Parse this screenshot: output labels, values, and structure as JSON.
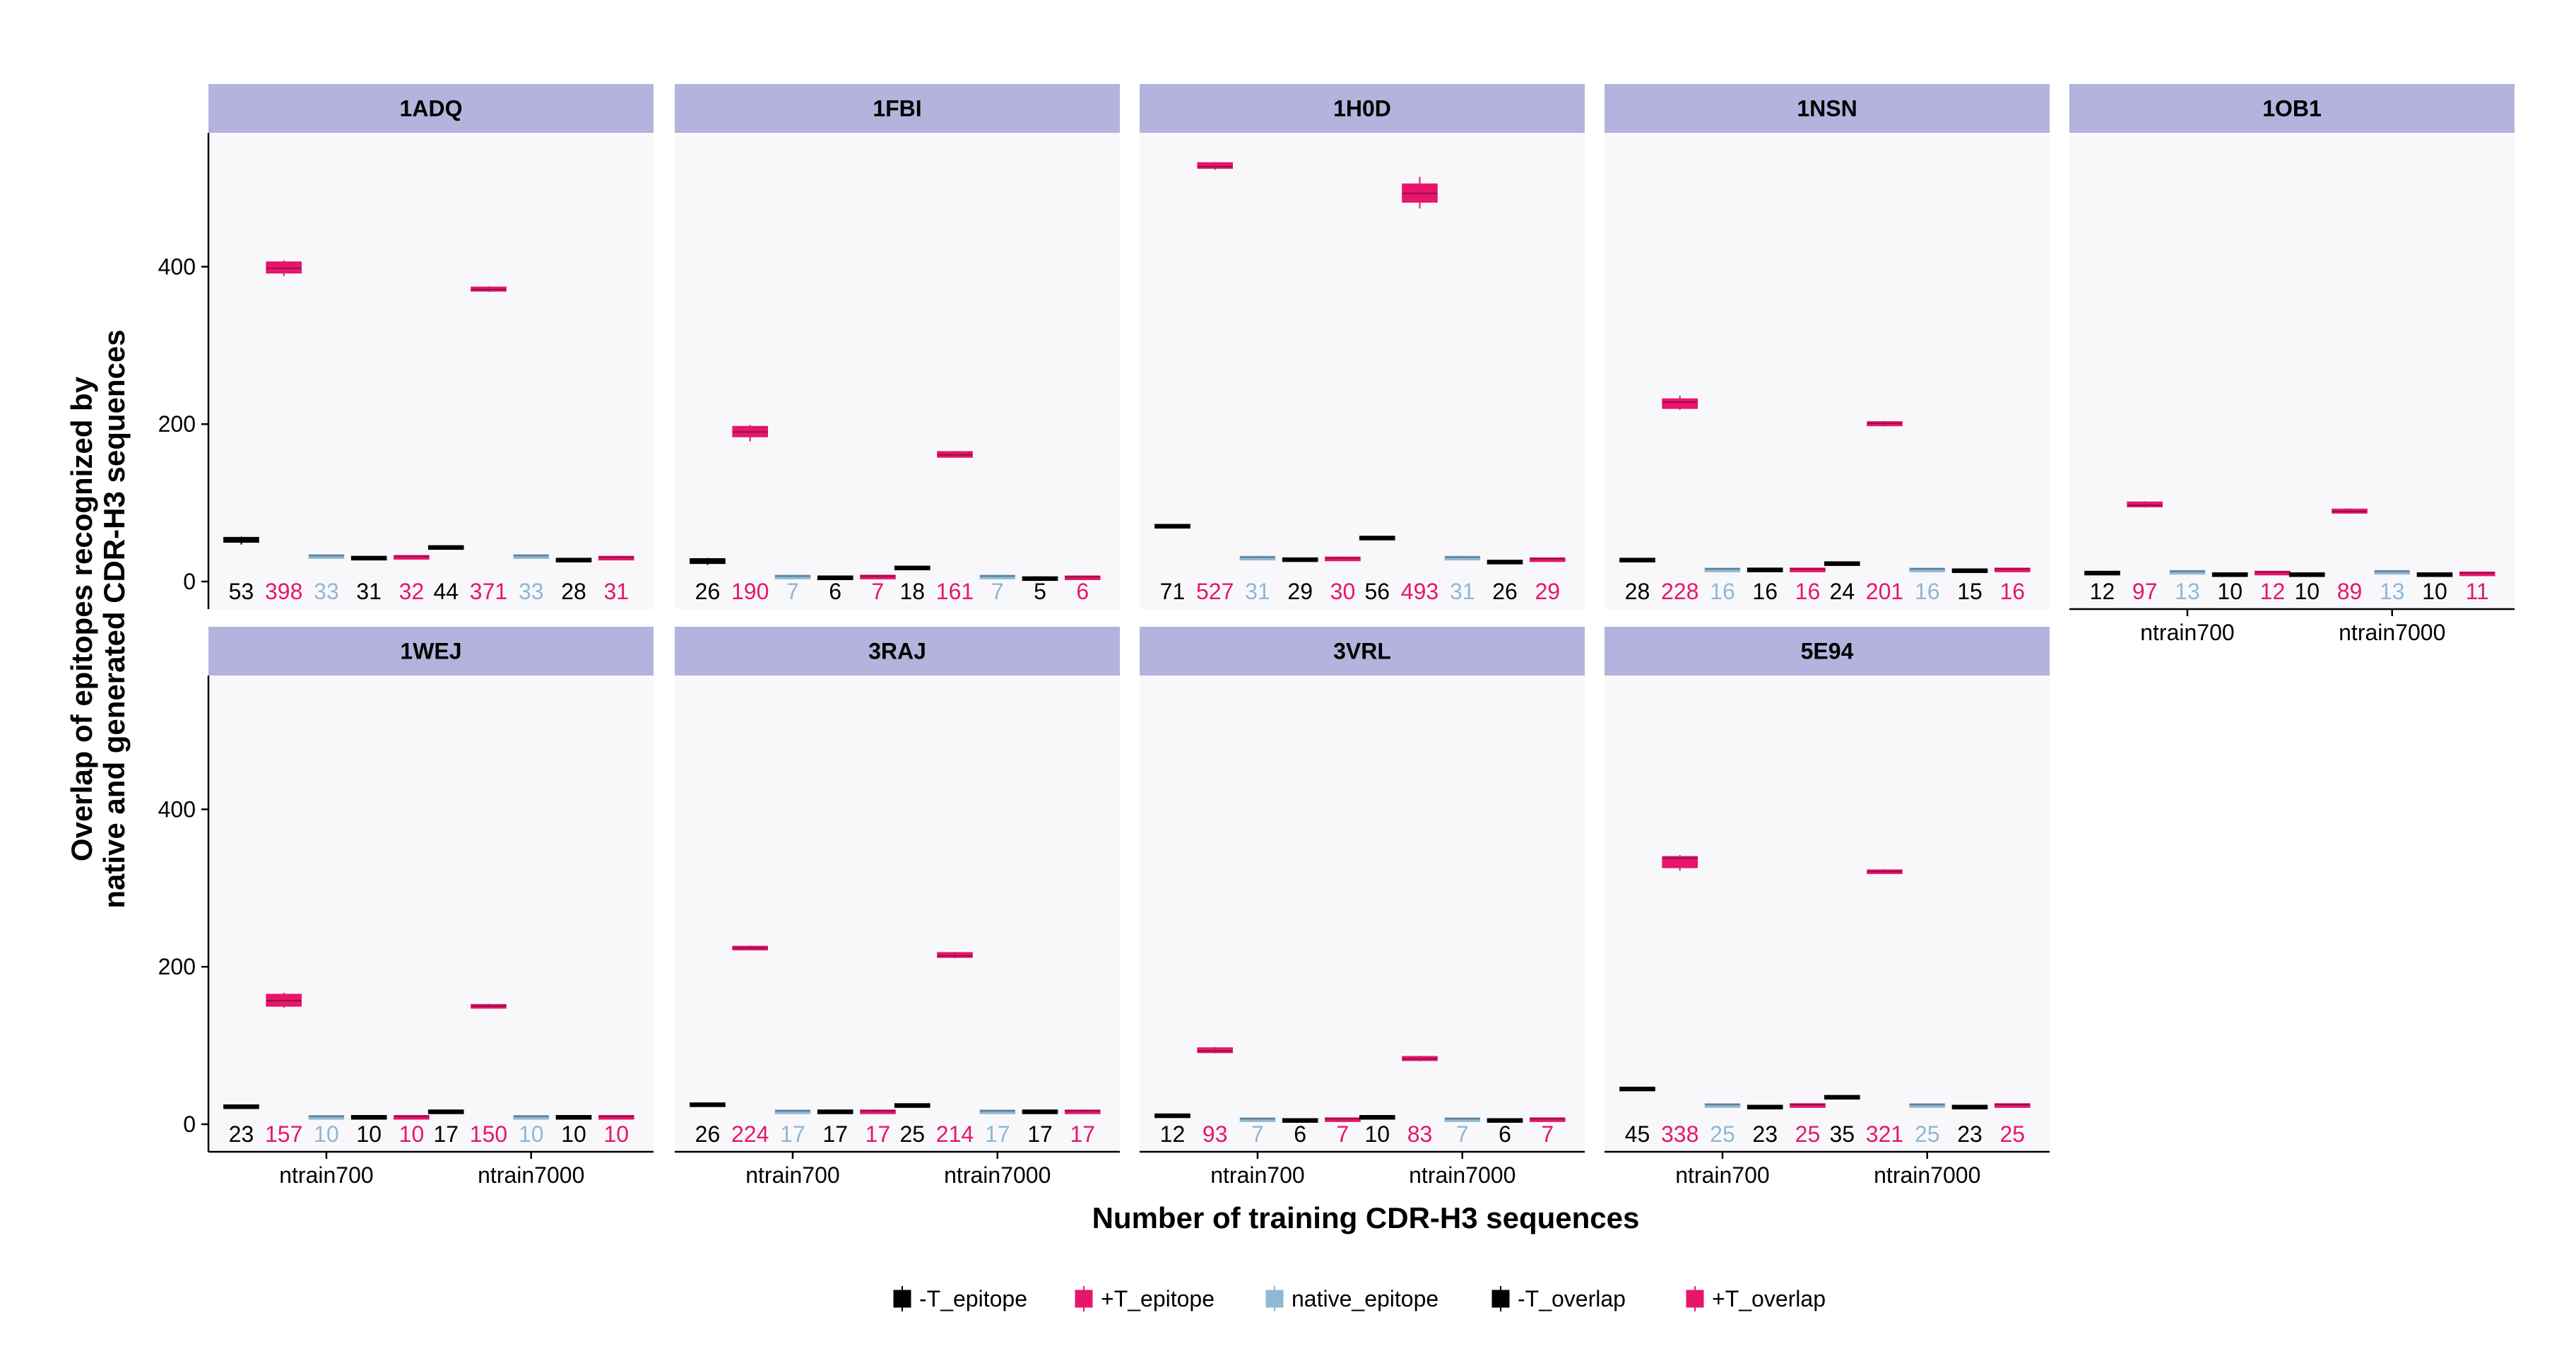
{
  "chart_data": {
    "type": "boxplot",
    "facet_layout": "2 rows x 5 columns, shared y axis",
    "ylabel": [
      "Overlap of epitopes recognized by",
      "native and generated CDR-H3 sequences"
    ],
    "xlabel": "Number of training CDR-H3 sequences",
    "y_ticks": [
      0,
      200,
      400
    ],
    "ylim": [
      -35,
      570
    ],
    "categories": [
      "ntrain700",
      "ntrain7000"
    ],
    "grid": false,
    "legend_position": "bottom",
    "series": [
      {
        "name": "-T_epitope",
        "color": "#000000"
      },
      {
        "name": "+T_epitope",
        "color": "#e6166b"
      },
      {
        "name": "native_epitope",
        "color": "#8fb8d3"
      },
      {
        "name": "-T_overlap",
        "color": "#000000"
      },
      {
        "name": "+T_overlap",
        "color": "#e6166b"
      }
    ],
    "panels": [
      {
        "title": "1ADQ",
        "ntrain700": {
          "medians": [
            53,
            398,
            33,
            31,
            32
          ],
          "q1": [
            50,
            392,
            31.5,
            30,
            31
          ],
          "q3": [
            56,
            406,
            34,
            32,
            33
          ],
          "wlo": [
            47,
            388,
            31,
            29.5,
            30.5
          ],
          "whi": [
            57,
            408,
            34.5,
            32.5,
            33.5
          ]
        },
        "ntrain7000": {
          "medians": [
            44,
            371,
            33,
            28,
            31
          ],
          "q1": [
            42.5,
            369,
            31.5,
            27,
            30
          ],
          "q3": [
            45.5,
            374,
            34,
            29.5,
            32
          ],
          "wlo": [
            42,
            368,
            31,
            26.5,
            29.5
          ],
          "whi": [
            46,
            375,
            34.5,
            30,
            32.5
          ]
        }
      },
      {
        "title": "1FBI",
        "ntrain700": {
          "medians": [
            26,
            190,
            7,
            6,
            7
          ],
          "q1": [
            23,
            184,
            6,
            5,
            6
          ],
          "q3": [
            29,
            197,
            8,
            7,
            8
          ],
          "wlo": [
            21,
            178,
            5.5,
            4.5,
            5.5
          ],
          "whi": [
            30,
            199,
            8.5,
            7.5,
            8.5
          ]
        },
        "ntrain7000": {
          "medians": [
            18,
            161,
            7,
            5,
            6
          ],
          "q1": [
            17,
            158,
            6,
            4.5,
            5.5
          ],
          "q3": [
            19.5,
            165,
            8,
            6,
            7
          ],
          "wlo": [
            16.5,
            157,
            5.5,
            4,
            5
          ],
          "whi": [
            20,
            166,
            8.5,
            6.5,
            7.5
          ]
        }
      },
      {
        "title": "1H0D",
        "ntrain700": {
          "medians": [
            71,
            527,
            31,
            29,
            30
          ],
          "q1": [
            69.5,
            525,
            30,
            28,
            29
          ],
          "q3": [
            72.5,
            532,
            32,
            30,
            31
          ],
          "wlo": [
            69,
            523,
            29.5,
            27.5,
            28.5
          ],
          "whi": [
            73,
            533,
            32.5,
            30.5,
            31.5
          ]
        },
        "ntrain7000": {
          "medians": [
            56,
            493,
            31,
            26,
            29
          ],
          "q1": [
            55,
            482,
            30,
            25,
            28
          ],
          "q3": [
            57.5,
            505,
            32,
            27,
            30
          ],
          "wlo": [
            54.5,
            474,
            29.5,
            24.5,
            27.5
          ],
          "whi": [
            58,
            514,
            32.5,
            27.5,
            30.5
          ]
        }
      },
      {
        "title": "1NSN",
        "ntrain700": {
          "medians": [
            28,
            228,
            16,
            16,
            16
          ],
          "q1": [
            26.5,
            220,
            15,
            15,
            15
          ],
          "q3": [
            29.5,
            232,
            17,
            17,
            17
          ],
          "wlo": [
            26,
            218,
            14.5,
            14.5,
            14.5
          ],
          "whi": [
            30,
            236,
            17.5,
            17.5,
            17.5
          ]
        },
        "ntrain7000": {
          "medians": [
            24,
            201,
            16,
            15,
            16
          ],
          "q1": [
            23,
            198,
            15,
            14,
            15
          ],
          "q3": [
            25,
            203,
            17,
            16,
            17
          ],
          "wlo": [
            22.5,
            197,
            14.5,
            13.5,
            14.5
          ],
          "whi": [
            25.5,
            204,
            17.5,
            16.5,
            17.5
          ]
        }
      },
      {
        "title": "1OB1",
        "ntrain700": {
          "medians": [
            12,
            97,
            13,
            10,
            12
          ],
          "q1": [
            11,
            95,
            12,
            9,
            11
          ],
          "q3": [
            13,
            101,
            14,
            11,
            13
          ],
          "wlo": [
            10.5,
            94,
            11.5,
            8.5,
            10.5
          ],
          "whi": [
            13.5,
            102,
            14.5,
            11.5,
            13.5
          ]
        },
        "ntrain7000": {
          "medians": [
            10,
            89,
            13,
            10,
            11
          ],
          "q1": [
            9,
            87,
            12,
            9,
            10
          ],
          "q3": [
            11,
            92,
            14,
            11,
            12
          ],
          "wlo": [
            8.5,
            86,
            11.5,
            8.5,
            9.5
          ],
          "whi": [
            11.5,
            93,
            14.5,
            11.5,
            12.5
          ]
        }
      },
      {
        "title": "1WEJ",
        "ntrain700": {
          "medians": [
            23,
            157,
            10,
            10,
            10
          ],
          "q1": [
            21.5,
            150,
            9,
            9,
            9
          ],
          "q3": [
            24.5,
            165,
            11,
            11,
            11
          ],
          "wlo": [
            21,
            148,
            8.5,
            8.5,
            8.5
          ],
          "whi": [
            25,
            167,
            11.5,
            11.5,
            11.5
          ]
        },
        "ntrain7000": {
          "medians": [
            17,
            150,
            10,
            10,
            10
          ],
          "q1": [
            16,
            149,
            9,
            9,
            9
          ],
          "q3": [
            18,
            152,
            11,
            11,
            11
          ],
          "wlo": [
            15.5,
            148,
            8.5,
            8.5,
            8.5
          ],
          "whi": [
            18.5,
            153,
            11.5,
            11.5,
            11.5
          ]
        }
      },
      {
        "title": "3RAJ",
        "ntrain700": {
          "medians": [
            26,
            224,
            17,
            17,
            17
          ],
          "q1": [
            25,
            222,
            16,
            16,
            16
          ],
          "q3": [
            27,
            226,
            18,
            18,
            18
          ],
          "wlo": [
            24.5,
            221,
            15.5,
            15.5,
            15.5
          ],
          "whi": [
            27.5,
            227,
            18.5,
            18.5,
            18.5
          ]
        },
        "ntrain7000": {
          "medians": [
            25,
            214,
            17,
            17,
            17
          ],
          "q1": [
            24,
            212,
            16,
            16,
            16
          ],
          "q3": [
            26,
            218,
            18,
            18,
            18
          ],
          "wlo": [
            23.5,
            211,
            15.5,
            15.5,
            15.5
          ],
          "whi": [
            26.5,
            219,
            18.5,
            18.5,
            18.5
          ]
        }
      },
      {
        "title": "3VRL",
        "ntrain700": {
          "medians": [
            12,
            93,
            7,
            6,
            7
          ],
          "q1": [
            11,
            91,
            6,
            5,
            6
          ],
          "q3": [
            13,
            97,
            8,
            7,
            8
          ],
          "wlo": [
            10.5,
            90,
            5.5,
            4.5,
            5.5
          ],
          "whi": [
            13.5,
            98,
            8.5,
            7.5,
            8.5
          ]
        },
        "ntrain7000": {
          "medians": [
            10,
            83,
            7,
            6,
            7
          ],
          "q1": [
            9,
            81,
            6,
            5,
            6
          ],
          "q3": [
            11,
            86,
            8,
            7,
            8
          ],
          "wlo": [
            8.5,
            80,
            5.5,
            4.5,
            5.5
          ],
          "whi": [
            11.5,
            87,
            8.5,
            7.5,
            8.5
          ]
        }
      },
      {
        "title": "5E94",
        "ntrain700": {
          "medians": [
            45,
            338,
            25,
            23,
            25
          ],
          "q1": [
            44,
            326,
            24,
            22,
            24
          ],
          "q3": [
            47,
            340,
            26,
            24,
            26
          ],
          "wlo": [
            43.5,
            322,
            23.5,
            21.5,
            23.5
          ],
          "whi": [
            47.5,
            342,
            26.5,
            24.5,
            26.5
          ]
        },
        "ntrain7000": {
          "medians": [
            35,
            321,
            25,
            23,
            25
          ],
          "q1": [
            34,
            319,
            24,
            22,
            24
          ],
          "q3": [
            36.5,
            323,
            26,
            24,
            26
          ],
          "wlo": [
            33.5,
            318,
            23.5,
            21.5,
            23.5
          ],
          "whi": [
            37,
            324,
            26.5,
            24.5,
            26.5
          ]
        }
      }
    ]
  }
}
